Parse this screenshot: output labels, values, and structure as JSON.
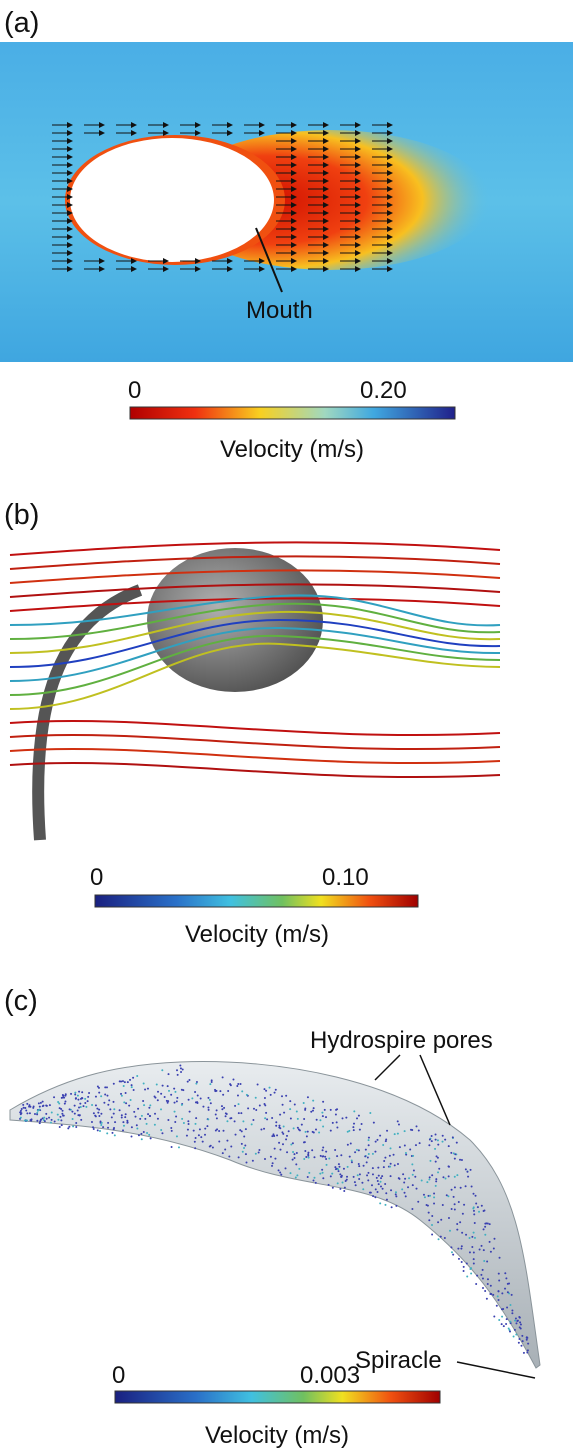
{
  "panels": [
    {
      "label": "(a)",
      "annotation": "Mouth",
      "colorbar": {
        "min_label": "0",
        "max_label": "0.20",
        "title": "Velocity (m/s)"
      }
    },
    {
      "label": "(b)",
      "colorbar": {
        "min_label": "0",
        "max_label": "0.10",
        "title": "Velocity (m/s)"
      }
    },
    {
      "label": "(c)",
      "annotations": [
        "Hydrospire pores",
        "Spiracle"
      ],
      "colorbar": {
        "min_label": "0",
        "max_label": "0.003",
        "title": "Velocity (m/s)"
      }
    }
  ]
}
